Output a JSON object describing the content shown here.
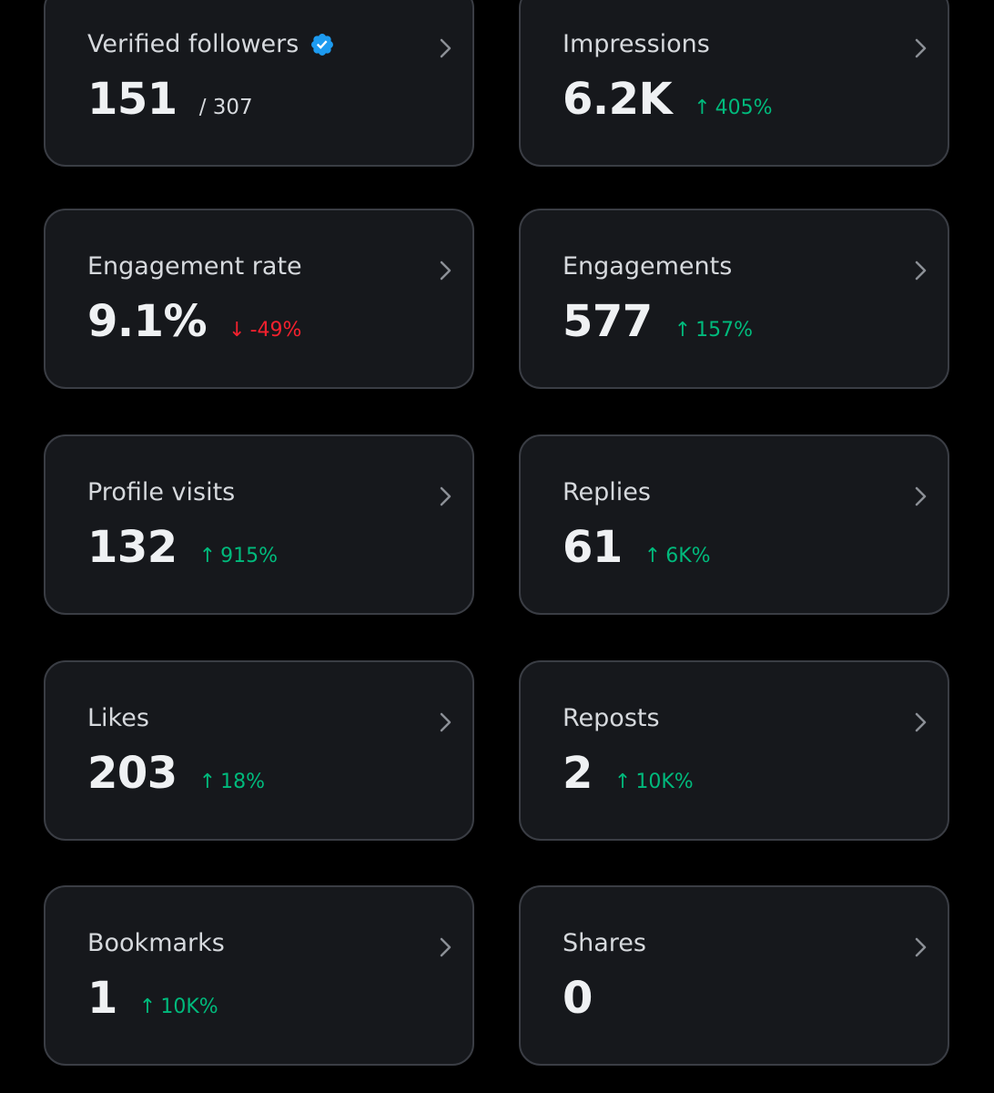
{
  "colors": {
    "background": "#000000",
    "card_bg": "#16181c",
    "card_border": "#3a3d44",
    "positive": "#00ba7c",
    "negative": "#f4212e",
    "verified": "#1d9bf0"
  },
  "cards": [
    {
      "label": "Verified followers",
      "value": "151",
      "total": "/ 307",
      "icon": "verified-badge-icon"
    },
    {
      "label": "Impressions",
      "value": "6.2K",
      "change": "405%",
      "direction": "up"
    },
    {
      "label": "Engagement rate",
      "value": "9.1%",
      "change": "-49%",
      "direction": "down"
    },
    {
      "label": "Engagements",
      "value": "577",
      "change": "157%",
      "direction": "up"
    },
    {
      "label": "Profile visits",
      "value": "132",
      "change": "915%",
      "direction": "up"
    },
    {
      "label": "Replies",
      "value": "61",
      "change": "6K%",
      "direction": "up"
    },
    {
      "label": "Likes",
      "value": "203",
      "change": "18%",
      "direction": "up"
    },
    {
      "label": "Reposts",
      "value": "2",
      "change": "10K%",
      "direction": "up"
    },
    {
      "label": "Bookmarks",
      "value": "1",
      "change": "10K%",
      "direction": "up"
    },
    {
      "label": "Shares",
      "value": "0"
    }
  ],
  "arrows": {
    "up": "↑",
    "down": "↓"
  }
}
